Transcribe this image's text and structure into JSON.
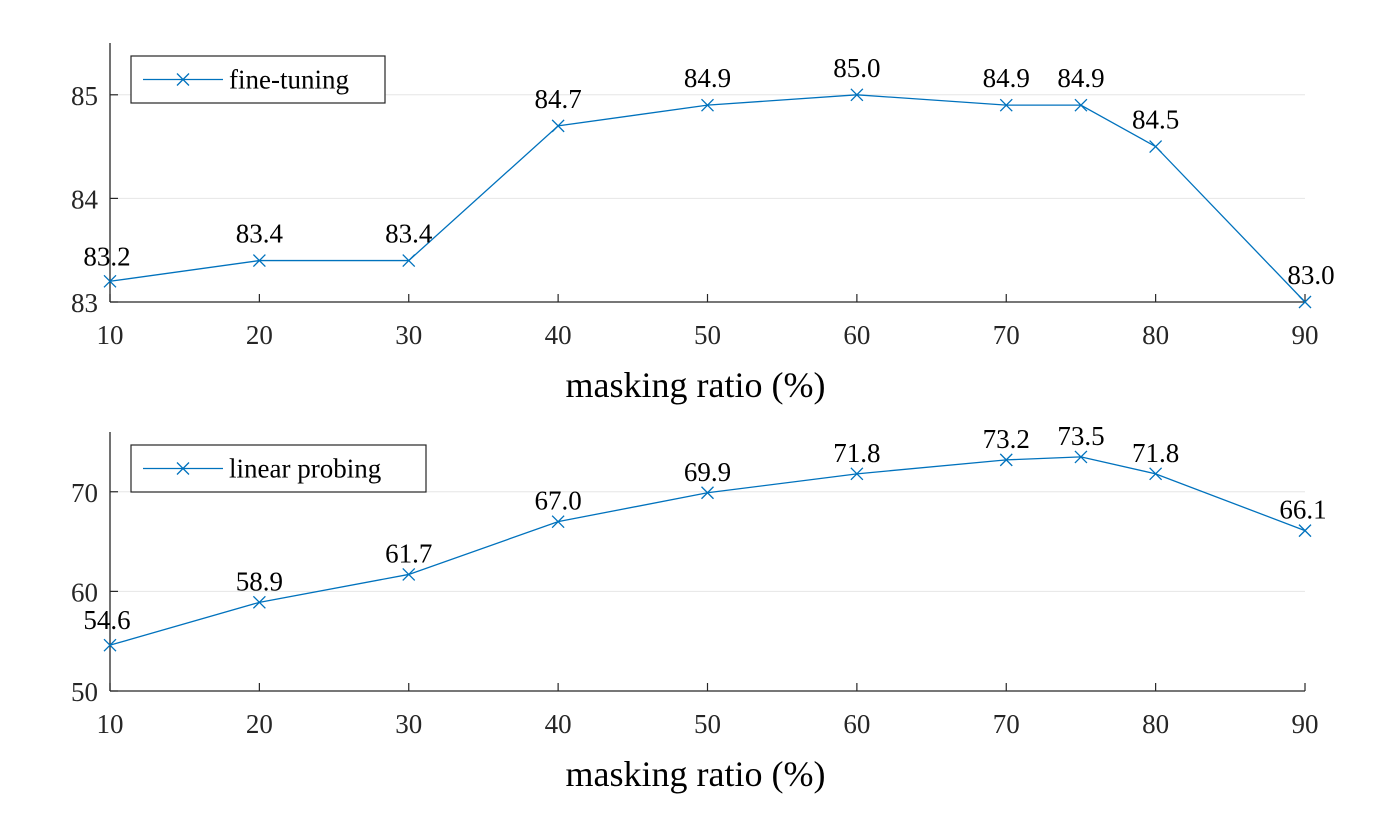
{
  "chart_data": [
    {
      "type": "line",
      "x": [
        10,
        20,
        30,
        40,
        50,
        60,
        70,
        75,
        80,
        90
      ],
      "series": [
        {
          "name": "fine-tuning",
          "values": [
            83.2,
            83.4,
            83.4,
            84.7,
            84.9,
            85.0,
            84.9,
            84.9,
            84.5,
            83.0
          ]
        }
      ],
      "data_labels": [
        "83.2",
        "83.4",
        "83.4",
        "84.7",
        "84.9",
        "85.0",
        "84.9",
        "84.9",
        "84.5",
        "83.0"
      ],
      "xlabel": "masking ratio (%)",
      "ylabel": "",
      "xlim": [
        10,
        90
      ],
      "ylim": [
        83,
        85.5
      ],
      "xticks": [
        10,
        20,
        30,
        40,
        50,
        60,
        70,
        80,
        90
      ],
      "yticks": [
        83,
        84,
        85
      ],
      "xtick_labels": [
        "10",
        "20",
        "30",
        "40",
        "50",
        "60",
        "70",
        "80",
        "90"
      ],
      "ytick_labels": [
        "83",
        "84",
        "85"
      ],
      "grid": "horizontal",
      "legend": "top-left",
      "marker": "x",
      "color": "#0072BD"
    },
    {
      "type": "line",
      "x": [
        10,
        20,
        30,
        40,
        50,
        60,
        70,
        75,
        80,
        90
      ],
      "series": [
        {
          "name": "linear probing",
          "values": [
            54.6,
            58.9,
            61.7,
            67.0,
            69.9,
            71.8,
            73.2,
            73.5,
            71.8,
            66.1
          ]
        }
      ],
      "data_labels": [
        "54.6",
        "58.9",
        "61.7",
        "67.0",
        "69.9",
        "71.8",
        "73.2",
        "73.5",
        "71.8",
        "66.1"
      ],
      "xlabel": "masking ratio (%)",
      "ylabel": "",
      "xlim": [
        10,
        90
      ],
      "ylim": [
        50,
        76
      ],
      "xticks": [
        10,
        20,
        30,
        40,
        50,
        60,
        70,
        80,
        90
      ],
      "yticks": [
        50,
        60,
        70
      ],
      "xtick_labels": [
        "10",
        "20",
        "30",
        "40",
        "50",
        "60",
        "70",
        "80",
        "90"
      ],
      "ytick_labels": [
        "50",
        "60",
        "70"
      ],
      "grid": "horizontal",
      "legend": "top-left",
      "marker": "x",
      "color": "#0072BD"
    }
  ]
}
